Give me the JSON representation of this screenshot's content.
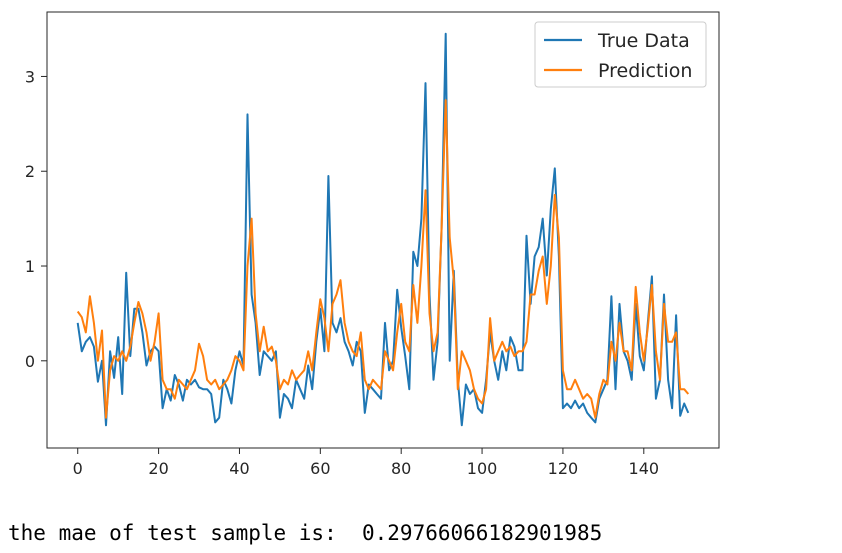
{
  "chart_data": {
    "type": "line",
    "title": "",
    "xlabel": "",
    "ylabel": "",
    "xlim": [
      -7.6,
      158.6
    ],
    "ylim": [
      -0.92,
      3.68
    ],
    "xticks": [
      0,
      20,
      40,
      60,
      80,
      100,
      120,
      140
    ],
    "yticks": [
      0,
      1,
      2,
      3
    ],
    "grid": false,
    "legend_position": "top-right",
    "series": [
      {
        "name": "True Data",
        "color": "#1f77b4",
        "values": [
          0.4,
          0.1,
          0.2,
          0.25,
          0.15,
          -0.22,
          0.0,
          -0.68,
          0.1,
          -0.18,
          0.25,
          -0.35,
          0.93,
          0.05,
          0.55,
          0.55,
          0.3,
          -0.05,
          0.1,
          0.15,
          0.1,
          -0.5,
          -0.3,
          -0.42,
          -0.15,
          -0.25,
          -0.42,
          -0.2,
          -0.25,
          -0.2,
          -0.28,
          -0.3,
          -0.3,
          -0.35,
          -0.65,
          -0.6,
          -0.2,
          -0.3,
          -0.45,
          -0.1,
          0.1,
          -0.05,
          2.6,
          0.7,
          0.4,
          -0.15,
          0.1,
          0.05,
          0.0,
          0.1,
          -0.6,
          -0.35,
          -0.4,
          -0.5,
          -0.2,
          -0.3,
          -0.4,
          -0.05,
          -0.3,
          0.2,
          0.55,
          0.1,
          1.95,
          0.4,
          0.3,
          0.45,
          0.2,
          0.1,
          -0.05,
          0.2,
          0.1,
          -0.55,
          -0.25,
          -0.3,
          -0.35,
          -0.4,
          0.4,
          -0.1,
          0.0,
          0.75,
          0.35,
          0.05,
          -0.3,
          1.15,
          1.0,
          1.5,
          2.93,
          0.7,
          -0.2,
          0.2,
          1.4,
          3.45,
          0.0,
          0.95,
          -0.2,
          -0.68,
          -0.25,
          -0.35,
          -0.3,
          -0.5,
          -0.55,
          -0.2,
          0.3,
          0.0,
          -0.2,
          0.1,
          -0.1,
          0.25,
          0.15,
          -0.1,
          -0.1,
          1.32,
          0.6,
          1.1,
          1.2,
          1.5,
          0.9,
          1.6,
          2.03,
          1.1,
          -0.5,
          -0.45,
          -0.5,
          -0.42,
          -0.5,
          -0.45,
          -0.55,
          -0.6,
          -0.65,
          -0.4,
          -0.3,
          -0.2,
          0.68,
          -0.3,
          0.6,
          0.1,
          0.0,
          -0.2,
          0.6,
          0.05,
          -0.1,
          0.4,
          0.89,
          -0.4,
          -0.2,
          0.7,
          -0.2,
          -0.5,
          0.48,
          -0.58,
          -0.45,
          -0.55
        ]
      },
      {
        "name": "Prediction",
        "color": "#ff7f0e",
        "values": [
          0.52,
          0.46,
          0.3,
          0.68,
          0.4,
          0.0,
          0.32,
          -0.6,
          -0.1,
          0.05,
          0.0,
          0.1,
          0.0,
          0.15,
          0.4,
          0.62,
          0.5,
          0.3,
          0.0,
          0.2,
          0.5,
          -0.2,
          -0.3,
          -0.3,
          -0.4,
          -0.2,
          -0.25,
          -0.3,
          -0.2,
          -0.1,
          0.18,
          0.05,
          -0.2,
          -0.25,
          -0.2,
          -0.3,
          -0.25,
          -0.2,
          -0.1,
          0.05,
          0.0,
          -0.1,
          1.0,
          1.5,
          0.5,
          0.1,
          0.36,
          0.1,
          0.15,
          0.0,
          -0.3,
          -0.2,
          -0.25,
          -0.1,
          -0.2,
          -0.15,
          -0.1,
          0.1,
          -0.1,
          0.3,
          0.65,
          0.45,
          0.1,
          0.6,
          0.7,
          0.85,
          0.4,
          0.2,
          0.1,
          0.05,
          0.3,
          -0.2,
          -0.3,
          -0.2,
          -0.25,
          -0.3,
          0.1,
          0.0,
          -0.1,
          0.3,
          0.6,
          0.2,
          0.1,
          0.8,
          0.4,
          1.0,
          1.8,
          0.5,
          0.1,
          0.3,
          1.4,
          2.75,
          1.3,
          0.85,
          -0.3,
          0.1,
          0.0,
          -0.1,
          -0.3,
          -0.4,
          -0.45,
          -0.3,
          0.45,
          0.0,
          0.1,
          0.2,
          0.1,
          0.15,
          0.05,
          0.1,
          0.1,
          0.2,
          0.7,
          0.7,
          0.95,
          1.1,
          0.6,
          1.0,
          1.75,
          1.3,
          -0.1,
          -0.3,
          -0.3,
          -0.2,
          -0.3,
          -0.4,
          -0.35,
          -0.4,
          -0.6,
          -0.35,
          -0.2,
          -0.25,
          0.2,
          0.0,
          0.4,
          0.1,
          0.1,
          -0.1,
          0.78,
          0.3,
          0.0,
          0.35,
          0.8,
          0.1,
          -0.2,
          0.6,
          0.2,
          0.2,
          0.3,
          -0.3,
          -0.3,
          -0.35
        ]
      }
    ]
  },
  "output": {
    "text": "the mae of test sample is:  0.29766066182901985"
  }
}
